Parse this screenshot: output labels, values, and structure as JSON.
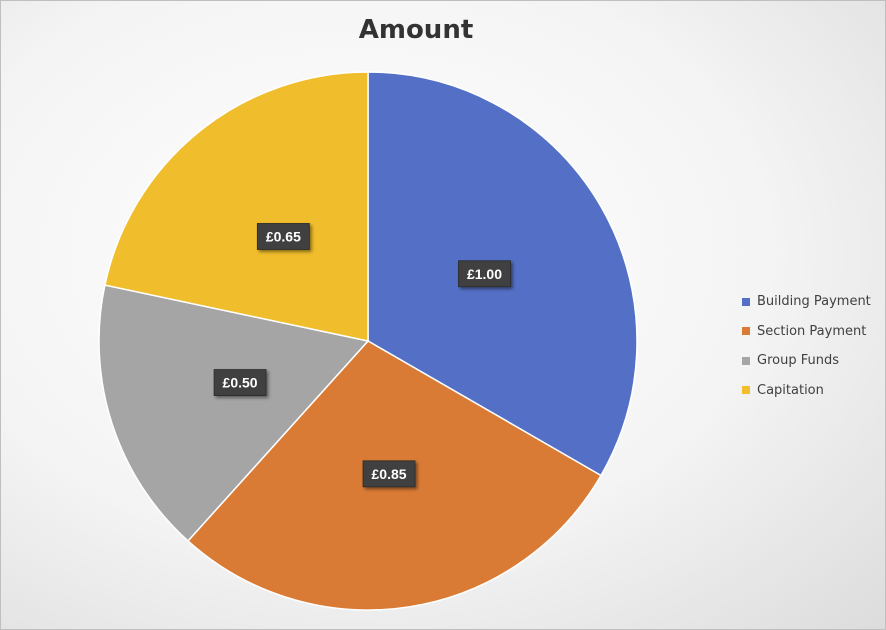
{
  "chart_data": {
    "type": "pie",
    "title": "Amount",
    "start_angle_deg": 0,
    "direction": "clockwise",
    "legend_position": "right",
    "slices": [
      {
        "label": "Building Payment",
        "value": 1.0,
        "display": "£1.00",
        "color": "#5470c6"
      },
      {
        "label": "Section Payment",
        "value": 0.85,
        "display": "£0.85",
        "color": "#d97b35"
      },
      {
        "label": "Group Funds",
        "value": 0.5,
        "display": "£0.50",
        "color": "#a5a5a5"
      },
      {
        "label": "Capitation",
        "value": 0.65,
        "display": "£0.65",
        "color": "#f0bd2c"
      }
    ]
  }
}
